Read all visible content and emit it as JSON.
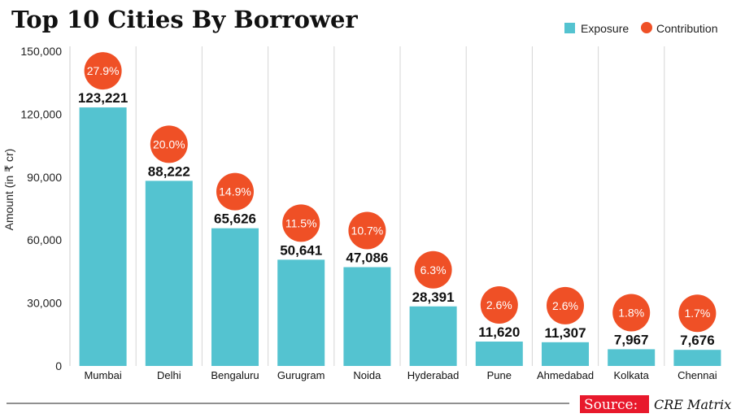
{
  "chart_data": {
    "type": "bar",
    "title": "Top 10 Cities By Borrower",
    "ylabel": "Amount (in ₹ cr)",
    "xlabel": "",
    "ylim": [
      0,
      150000
    ],
    "yticks": [
      0,
      30000,
      60000,
      90000,
      120000,
      150000
    ],
    "ytick_labels": [
      "0",
      "30,000",
      "60,000",
      "90,000",
      "120,000",
      "150,000"
    ],
    "grid": "vertical",
    "legend_position": "top-right",
    "categories": [
      "Mumbai",
      "Delhi",
      "Bengaluru",
      "Gurugram",
      "Noida",
      "Hyderabad",
      "Pune",
      "Ahmedabad",
      "Kolkata",
      "Chennai"
    ],
    "series": [
      {
        "name": "Exposure",
        "color": "#54c3d0",
        "values": [
          123221,
          88222,
          65626,
          50641,
          47086,
          28391,
          11620,
          11307,
          7967,
          7676
        ],
        "labels": [
          "123,221",
          "88,222",
          "65,626",
          "50,641",
          "47,086",
          "28,391",
          "11,620",
          "11,307",
          "7,967",
          "7,676"
        ]
      },
      {
        "name": "Contribution",
        "color": "#ef5026",
        "values": [
          27.9,
          20.0,
          14.9,
          11.5,
          10.7,
          6.3,
          2.6,
          2.6,
          1.8,
          1.7
        ],
        "labels": [
          "27.9%",
          "20.0%",
          "14.9%",
          "11.5%",
          "10.7%",
          "6.3%",
          "2.6%",
          "2.6%",
          "1.8%",
          "1.7%"
        ]
      }
    ]
  },
  "source": {
    "label": "Source:",
    "value": "CRE Matrix",
    "label_color": "#e8192c"
  }
}
